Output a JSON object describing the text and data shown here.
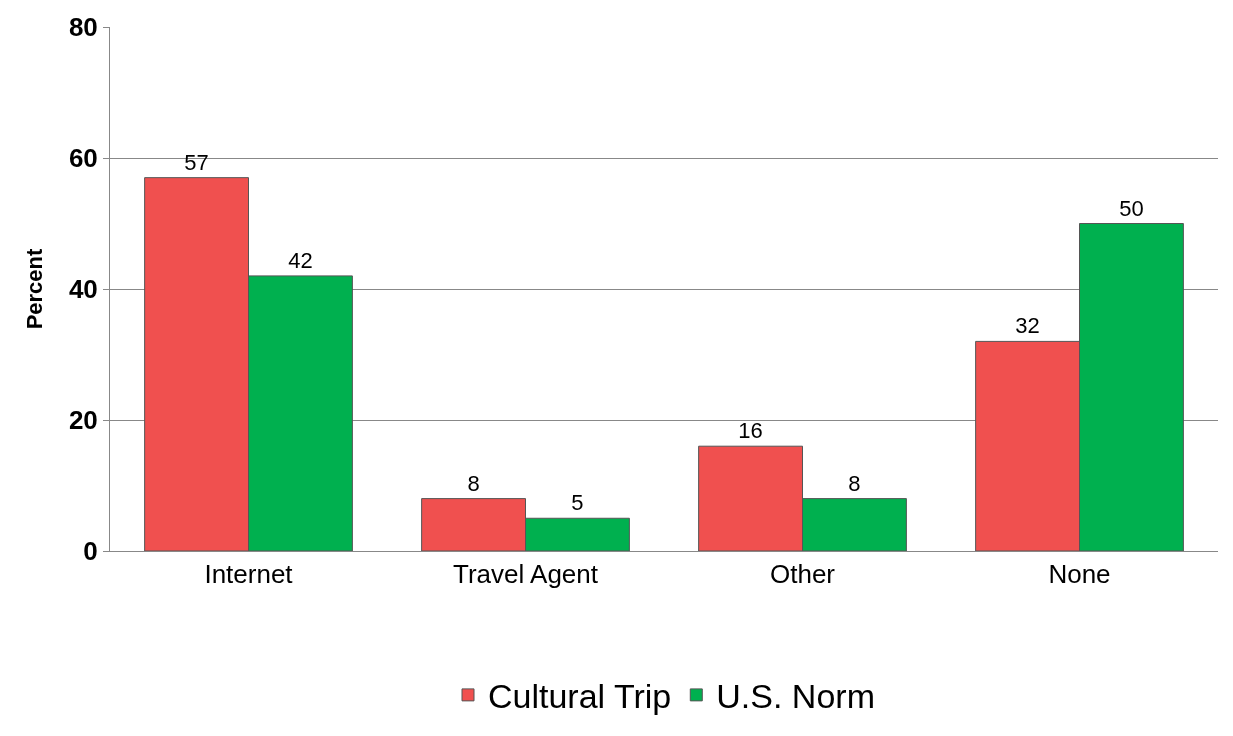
{
  "chart_data": {
    "type": "bar",
    "ylabel": "Percent",
    "categories": [
      "Internet",
      "Travel Agent",
      "Other",
      "None"
    ],
    "series": [
      {
        "name": "Cultural Trip",
        "color": "#f0504f",
        "values": [
          57,
          8,
          16,
          32
        ]
      },
      {
        "name": "U.S. Norm",
        "color": "#00b04f",
        "values": [
          42,
          5,
          8,
          50
        ]
      }
    ],
    "ylim": [
      0,
      80
    ],
    "yticks": [
      0,
      20,
      40,
      60,
      80
    ],
    "grid": "y",
    "legend": "bottom",
    "data_labels": true
  }
}
